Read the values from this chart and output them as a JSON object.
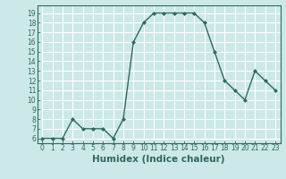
{
  "x": [
    0,
    1,
    2,
    3,
    4,
    5,
    6,
    7,
    8,
    9,
    10,
    11,
    12,
    13,
    14,
    15,
    16,
    17,
    18,
    19,
    20,
    21,
    22,
    23
  ],
  "y": [
    6,
    6,
    6,
    8,
    7,
    7,
    7,
    6,
    8,
    16,
    18,
    19,
    19,
    19,
    19,
    19,
    18,
    15,
    12,
    11,
    10,
    13,
    12,
    11
  ],
  "line_color": "#2d6b5e",
  "marker": "D",
  "marker_size": 2.0,
  "bg_color": "#cce8e8",
  "grid_color": "#ffffff",
  "xlabel": "Humidex (Indice chaleur)",
  "xlim": [
    -0.5,
    23.5
  ],
  "ylim": [
    5.5,
    19.8
  ],
  "yticks": [
    6,
    7,
    8,
    9,
    10,
    11,
    12,
    13,
    14,
    15,
    16,
    17,
    18,
    19
  ],
  "xticks": [
    0,
    1,
    2,
    3,
    4,
    5,
    6,
    7,
    8,
    9,
    10,
    11,
    12,
    13,
    14,
    15,
    16,
    17,
    18,
    19,
    20,
    21,
    22,
    23
  ],
  "tick_label_fontsize": 5.5,
  "xlabel_fontsize": 7.5,
  "tick_color": "#2d6b5e",
  "label_color": "#2d6b5e",
  "linewidth": 1.0
}
